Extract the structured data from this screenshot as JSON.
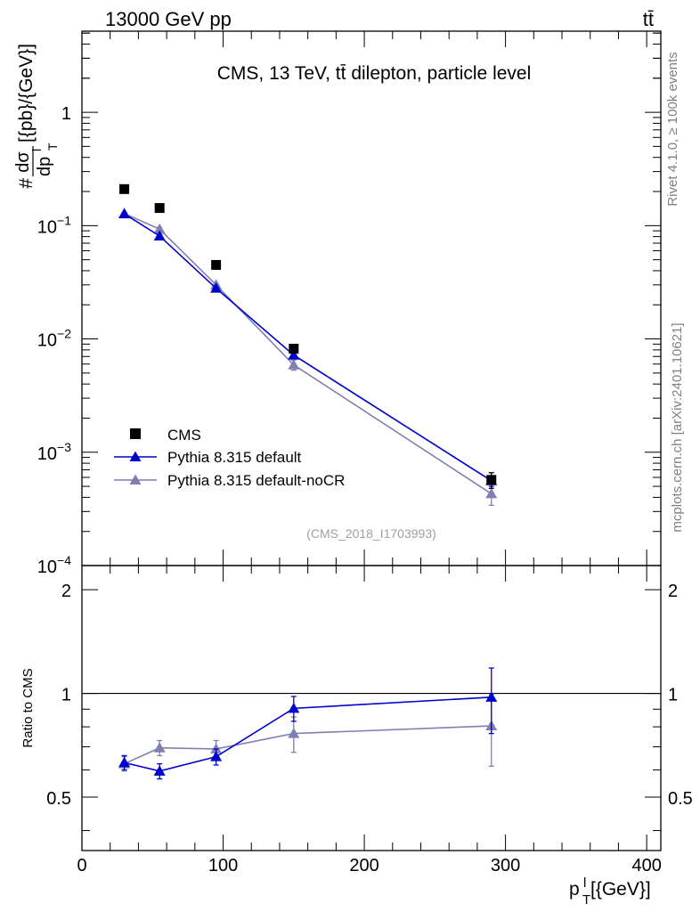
{
  "header": {
    "left": "13000 GeV pp",
    "right": "tt̄"
  },
  "side_labels": {
    "rivet": "Rivet 4.1.0, ≥ 100k events",
    "mcplots": "mcplots.cern.ch [arXiv:2401.10621]"
  },
  "chart_data": [
    {
      "type": "scatter",
      "title": "CMS, 13 TeV, tt̄ dilepton, particle level",
      "watermark": "(CMS_2018_I1703993)",
      "ylabel": "#dσ/dp_T^l[{pb}/{GeV}]",
      "ylabel_parts": {
        "prefix": "#",
        "num": "dσ",
        "den": "dp",
        "den_sup": "l",
        "den_sub": "T",
        "suffix": "[{pb}/{GeV}]"
      },
      "xlabel": "p_T^l[{GeV}]",
      "xlim": [
        0,
        410
      ],
      "ylim": [
        0.0001,
        5.2
      ],
      "yscale": "log",
      "yticks": [
        {
          "value": 1,
          "base": "1",
          "exp": ""
        },
        {
          "value": 0.1,
          "base": "10",
          "exp": "−1"
        },
        {
          "value": 0.01,
          "base": "10",
          "exp": "−2"
        },
        {
          "value": 0.001,
          "base": "10",
          "exp": "−3"
        },
        {
          "value": 0.0001,
          "base": "10",
          "exp": "−4"
        }
      ],
      "legend_position": "bottom-left",
      "series": [
        {
          "name": "CMS",
          "marker": "square",
          "color": "#000000",
          "line": false,
          "x": [
            30,
            55,
            95,
            150,
            290
          ],
          "y": [
            0.21,
            0.143,
            0.045,
            0.0082,
            0.00057
          ],
          "err": [
            0.006,
            0.004,
            0.0013,
            0.0004,
            9e-05
          ]
        },
        {
          "name": "Pythia 8.315 default",
          "marker": "triangle",
          "color": "#0000cc",
          "line": true,
          "x": [
            30,
            55,
            95,
            150,
            290
          ],
          "y": [
            0.127,
            0.081,
            0.028,
            0.0072,
            0.00056
          ],
          "err": [
            0.003,
            0.002,
            0.0008,
            0.0004,
            6e-05
          ]
        },
        {
          "name": "Pythia 8.315 default-noCR",
          "marker": "triangle",
          "color": "#7f7fb2",
          "line": true,
          "x": [
            30,
            55,
            95,
            150,
            290
          ],
          "y": [
            0.128,
            0.093,
            0.03,
            0.0059,
            0.00043
          ],
          "err": [
            0.003,
            0.003,
            0.0009,
            0.0006,
            9e-05
          ]
        }
      ]
    },
    {
      "type": "scatter",
      "ylabel": "Ratio to CMS",
      "xlabel": "p_T^l[{GeV}]",
      "xlim": [
        0,
        410
      ],
      "ylim": [
        0.35,
        2.35
      ],
      "yscale": "log",
      "yticks": [
        0.5,
        1,
        2
      ],
      "ytick_labels": [
        "0.5",
        "1",
        "2"
      ],
      "xticks": [
        0,
        100,
        200,
        300,
        400
      ],
      "xtick_labels": [
        "0",
        "100",
        "200",
        "300",
        "400"
      ],
      "reference_line": 1,
      "series": [
        {
          "name": "Pythia 8.315 default",
          "marker": "triangle",
          "color": "#0000cc",
          "line": true,
          "x": [
            30,
            55,
            95,
            150,
            290
          ],
          "y": [
            0.63,
            0.595,
            0.655,
            0.905,
            0.975
          ],
          "err": [
            0.03,
            0.03,
            0.035,
            0.075,
            0.21
          ]
        },
        {
          "name": "Pythia 8.315 default-noCR",
          "marker": "triangle",
          "color": "#7f7fb2",
          "line": true,
          "x": [
            30,
            55,
            95,
            150,
            290
          ],
          "y": [
            0.625,
            0.695,
            0.69,
            0.765,
            0.805
          ],
          "err": [
            0.03,
            0.035,
            0.04,
            0.09,
            0.19
          ]
        }
      ]
    }
  ]
}
